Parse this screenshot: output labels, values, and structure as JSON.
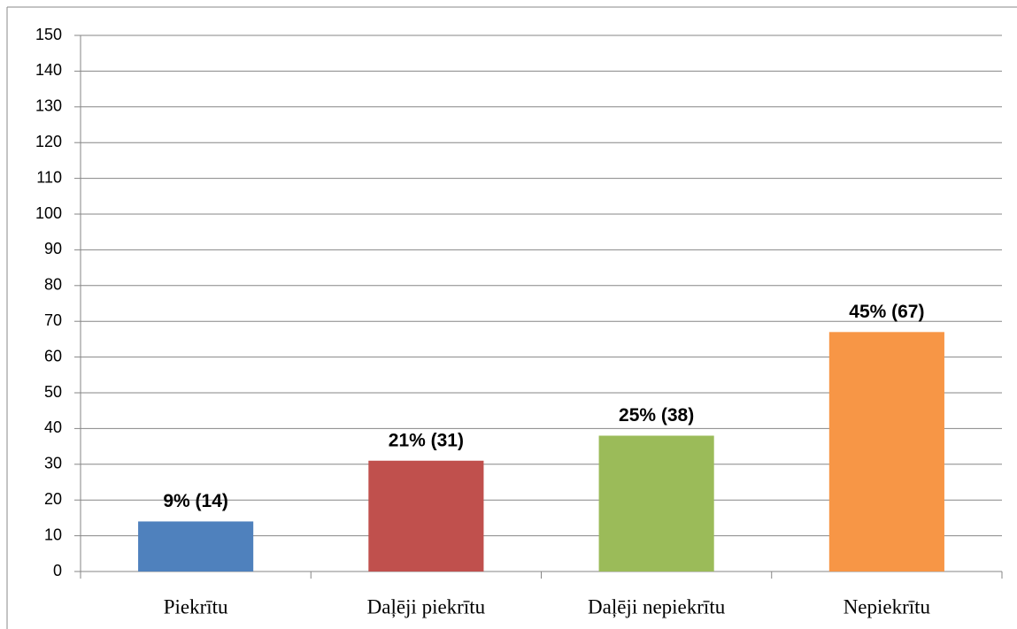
{
  "chart_data": {
    "type": "bar",
    "categories": [
      "Piekrītu",
      "Daļēji piekrītu",
      "Daļēji nepiekrītu",
      "Nepiekrītu"
    ],
    "values": [
      14,
      31,
      38,
      67
    ],
    "value_labels": [
      "9% (14)",
      "21% (31)",
      "25% (38)",
      "45% (67)"
    ],
    "colors": [
      "#4f81bd",
      "#c0504d",
      "#9bbb59",
      "#f79646"
    ],
    "ylim": [
      0,
      150
    ],
    "yticks": [
      0,
      10,
      20,
      30,
      40,
      50,
      60,
      70,
      80,
      90,
      100,
      110,
      120,
      130,
      140,
      150
    ],
    "grid": true
  }
}
